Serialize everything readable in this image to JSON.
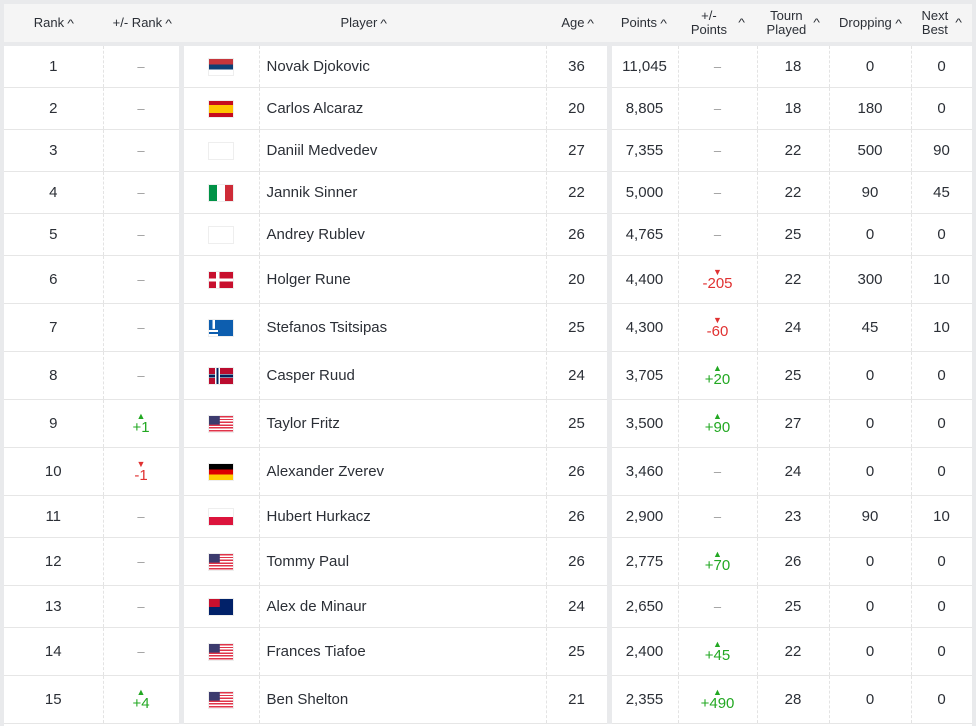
{
  "headers": [
    "Rank",
    "+/- Rank",
    "Player",
    "Age",
    "Points",
    "+/- Points",
    "Tourn Played",
    "Dropping",
    "Next Best"
  ],
  "header_lines": {
    "pm_points": [
      "+/-",
      "Points"
    ],
    "tourn": [
      "Tourn",
      "Played"
    ],
    "next": [
      "Next",
      "Best"
    ]
  },
  "sort_icon": "caret-up-icon",
  "colors": {
    "up": "#22a822",
    "down": "#e03131"
  },
  "rows": [
    {
      "rank": "1",
      "rank_change": "–",
      "rank_dir": "",
      "flag": "srb",
      "player": "Novak Djokovic",
      "age": "36",
      "points": "11,045",
      "points_change": "–",
      "points_dir": "",
      "tourn": "18",
      "dropping": "0",
      "next": "0"
    },
    {
      "rank": "2",
      "rank_change": "–",
      "rank_dir": "",
      "flag": "esp",
      "player": "Carlos Alcaraz",
      "age": "20",
      "points": "8,805",
      "points_change": "–",
      "points_dir": "",
      "tourn": "18",
      "dropping": "180",
      "next": "0"
    },
    {
      "rank": "3",
      "rank_change": "–",
      "rank_dir": "",
      "flag": "none",
      "player": "Daniil Medvedev",
      "age": "27",
      "points": "7,355",
      "points_change": "–",
      "points_dir": "",
      "tourn": "22",
      "dropping": "500",
      "next": "90"
    },
    {
      "rank": "4",
      "rank_change": "–",
      "rank_dir": "",
      "flag": "ita",
      "player": "Jannik Sinner",
      "age": "22",
      "points": "5,000",
      "points_change": "–",
      "points_dir": "",
      "tourn": "22",
      "dropping": "90",
      "next": "45"
    },
    {
      "rank": "5",
      "rank_change": "–",
      "rank_dir": "",
      "flag": "none",
      "player": "Andrey Rublev",
      "age": "26",
      "points": "4,765",
      "points_change": "–",
      "points_dir": "",
      "tourn": "25",
      "dropping": "0",
      "next": "0"
    },
    {
      "rank": "6",
      "rank_change": "–",
      "rank_dir": "",
      "flag": "den",
      "player": "Holger Rune",
      "age": "20",
      "points": "4,400",
      "points_change": "-205",
      "points_dir": "down",
      "tourn": "22",
      "dropping": "300",
      "next": "10"
    },
    {
      "rank": "7",
      "rank_change": "–",
      "rank_dir": "",
      "flag": "gre",
      "player": "Stefanos Tsitsipas",
      "age": "25",
      "points": "4,300",
      "points_change": "-60",
      "points_dir": "down",
      "tourn": "24",
      "dropping": "45",
      "next": "10"
    },
    {
      "rank": "8",
      "rank_change": "–",
      "rank_dir": "",
      "flag": "nor",
      "player": "Casper Ruud",
      "age": "24",
      "points": "3,705",
      "points_change": "+20",
      "points_dir": "up",
      "tourn": "25",
      "dropping": "0",
      "next": "0"
    },
    {
      "rank": "9",
      "rank_change": "+1",
      "rank_dir": "up",
      "flag": "usa",
      "player": "Taylor Fritz",
      "age": "25",
      "points": "3,500",
      "points_change": "+90",
      "points_dir": "up",
      "tourn": "27",
      "dropping": "0",
      "next": "0"
    },
    {
      "rank": "10",
      "rank_change": "-1",
      "rank_dir": "down",
      "flag": "ger",
      "player": "Alexander Zverev",
      "age": "26",
      "points": "3,460",
      "points_change": "–",
      "points_dir": "",
      "tourn": "24",
      "dropping": "0",
      "next": "0"
    },
    {
      "rank": "11",
      "rank_change": "–",
      "rank_dir": "",
      "flag": "pol",
      "player": "Hubert Hurkacz",
      "age": "26",
      "points": "2,900",
      "points_change": "–",
      "points_dir": "",
      "tourn": "23",
      "dropping": "90",
      "next": "10"
    },
    {
      "rank": "12",
      "rank_change": "–",
      "rank_dir": "",
      "flag": "usa",
      "player": "Tommy Paul",
      "age": "26",
      "points": "2,775",
      "points_change": "+70",
      "points_dir": "up",
      "tourn": "26",
      "dropping": "0",
      "next": "0"
    },
    {
      "rank": "13",
      "rank_change": "–",
      "rank_dir": "",
      "flag": "aus",
      "player": "Alex de Minaur",
      "age": "24",
      "points": "2,650",
      "points_change": "–",
      "points_dir": "",
      "tourn": "25",
      "dropping": "0",
      "next": "0"
    },
    {
      "rank": "14",
      "rank_change": "–",
      "rank_dir": "",
      "flag": "usa",
      "player": "Frances Tiafoe",
      "age": "25",
      "points": "2,400",
      "points_change": "+45",
      "points_dir": "up",
      "tourn": "22",
      "dropping": "0",
      "next": "0"
    },
    {
      "rank": "15",
      "rank_change": "+4",
      "rank_dir": "up",
      "flag": "usa",
      "player": "Ben Shelton",
      "age": "21",
      "points": "2,355",
      "points_change": "+490",
      "points_dir": "up",
      "tourn": "28",
      "dropping": "0",
      "next": "0"
    }
  ]
}
